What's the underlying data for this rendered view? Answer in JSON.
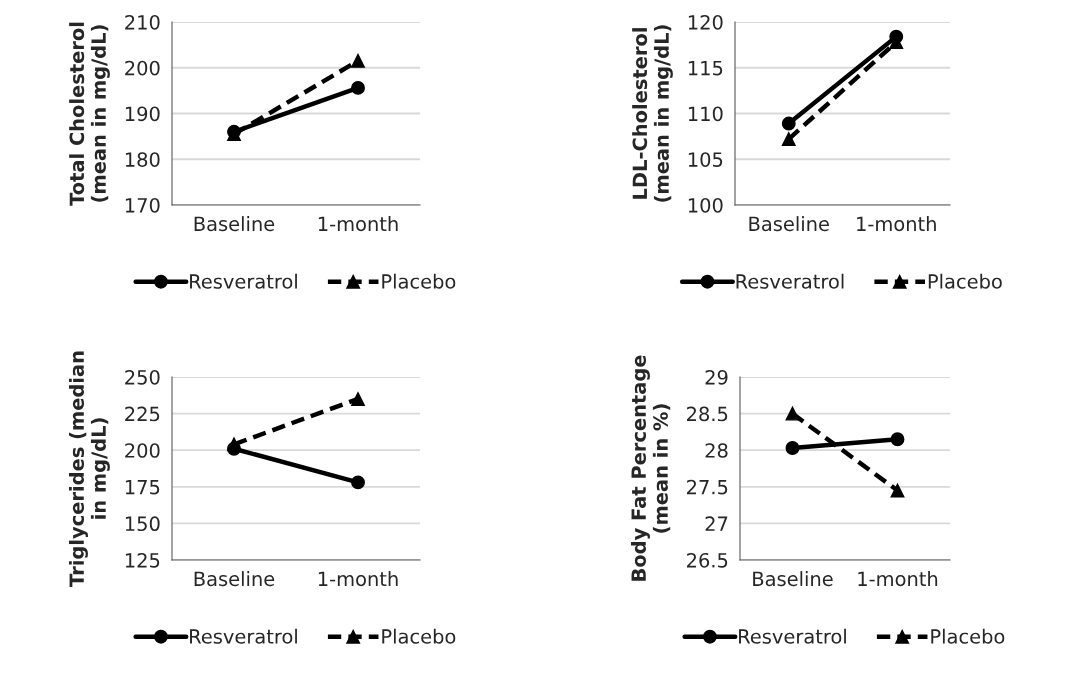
{
  "chart_data": [
    {
      "type": "line",
      "ylabel": "Total Cholesterol\n(mean in mg/dL)",
      "categories": [
        "Baseline",
        "1-month"
      ],
      "ylim": [
        170,
        210
      ],
      "yticks": [
        170,
        180,
        190,
        200,
        210
      ],
      "grid": "y",
      "legend": "bottom",
      "series": [
        {
          "name": "Resveratrol",
          "color": "#000000",
          "values": [
            186,
            195.6
          ],
          "marker": "circle",
          "line_style": "solid"
        },
        {
          "name": "Placebo",
          "color": "#000000",
          "values": [
            185.5,
            201.5
          ],
          "marker": "triangle",
          "line_style": "dashed"
        }
      ]
    },
    {
      "type": "line",
      "ylabel": "LDL-Cholesterol\n(mean in mg/dL)",
      "categories": [
        "Baseline",
        "1-month"
      ],
      "ylim": [
        100,
        120
      ],
      "yticks": [
        100,
        105,
        110,
        115,
        120
      ],
      "grid": "y",
      "legend": "bottom",
      "series": [
        {
          "name": "Resveratrol",
          "color": "#000000",
          "values": [
            108.9,
            118.4
          ],
          "marker": "circle",
          "line_style": "solid"
        },
        {
          "name": "Placebo",
          "color": "#000000",
          "values": [
            107.2,
            117.8
          ],
          "marker": "triangle",
          "line_style": "dashed"
        }
      ]
    },
    {
      "type": "line",
      "ylabel": "Triglycerides (median\nin mg/dL)",
      "categories": [
        "Baseline",
        "1-month"
      ],
      "ylim": [
        125,
        250
      ],
      "yticks": [
        125,
        150,
        175,
        200,
        225,
        250
      ],
      "grid": "y",
      "legend": "bottom",
      "series": [
        {
          "name": "Resveratrol",
          "color": "#000000",
          "values": [
            201,
            178
          ],
          "marker": "circle",
          "line_style": "solid"
        },
        {
          "name": "Placebo",
          "color": "#000000",
          "values": [
            204,
            235
          ],
          "marker": "triangle",
          "line_style": "dashed"
        }
      ]
    },
    {
      "type": "line",
      "ylabel": "Body Fat Percentage\n(mean in %)",
      "categories": [
        "Baseline",
        "1-month"
      ],
      "ylim": [
        26.5,
        29
      ],
      "yticks": [
        {
          "value": 26.5,
          "label": "26.5"
        },
        {
          "value": 27,
          "label": "27"
        },
        {
          "value": 27.5,
          "label": "27.5"
        },
        {
          "value": 28,
          "label": "28"
        },
        {
          "value": 28.5,
          "label": "28.5"
        },
        {
          "value": 29,
          "label": "29"
        }
      ],
      "grid": "y",
      "legend": "bottom",
      "series": [
        {
          "name": "Resveratrol",
          "color": "#000000",
          "values": [
            28.03,
            28.15
          ],
          "marker": "circle",
          "line_style": "solid"
        },
        {
          "name": "Placebo",
          "color": "#000000",
          "values": [
            28.5,
            27.45
          ],
          "marker": "triangle",
          "line_style": "dashed"
        }
      ]
    }
  ]
}
